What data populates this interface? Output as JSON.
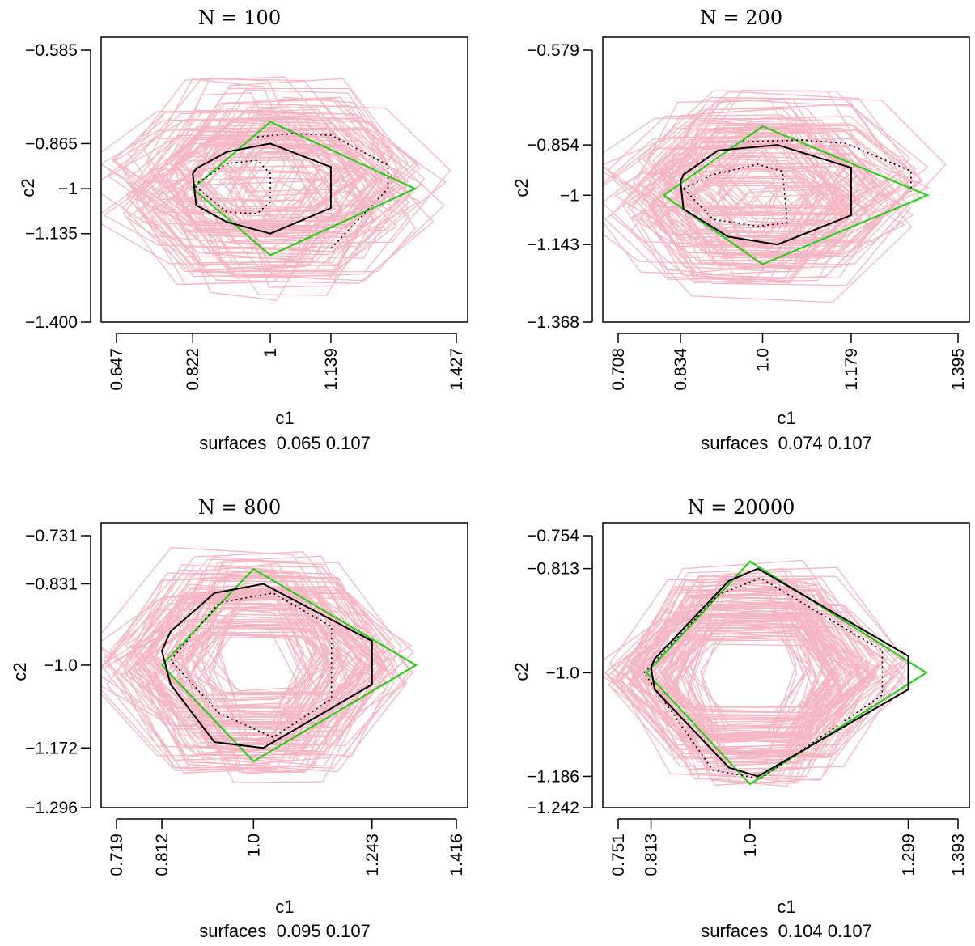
{
  "figure": {
    "xlabel": "c1",
    "ylabel": "c2",
    "colors": {
      "samples": "#f4b6c2",
      "truth": "#2ecc1f",
      "estimate": "#000000",
      "frame": "#000000"
    }
  },
  "chart_data": [
    {
      "type": "line",
      "title": "N = 100",
      "xlabel": "c1",
      "ylabel": "c2",
      "subtitle": "surfaces  0.065 0.107",
      "xlim": [
        0.647,
        1.427
      ],
      "ylim": [
        -1.4,
        -0.585
      ],
      "xticks": [
        0.647,
        0.822,
        1,
        1.139,
        1.427
      ],
      "xtick_labels": [
        "0.647",
        "0.822",
        "1",
        "1.139",
        "1.427"
      ],
      "yticks": [
        -0.585,
        -0.865,
        -1,
        -1.135,
        -1.4
      ],
      "ytick_labels": [
        "−0.585",
        "−0.865",
        "−1",
        "−1.135",
        "−1.400"
      ],
      "series": [
        {
          "style": "truth",
          "x": [
            0.822,
            1.0,
            1.332,
            1.0,
            0.822
          ],
          "y": [
            -1.0,
            -0.8,
            -1.0,
            -1.2,
            -1.0
          ]
        },
        {
          "style": "estimate",
          "x": [
            0.822,
            0.83,
            0.9,
            1.0,
            1.139,
            1.139,
            1.0,
            0.9,
            0.83,
            0.822
          ],
          "y": [
            -0.955,
            -0.94,
            -0.89,
            -0.865,
            -0.935,
            -1.058,
            -1.135,
            -1.1,
            -1.05,
            -0.955
          ]
        },
        {
          "style": "dotted",
          "x": [
            0.825,
            0.9,
            0.97,
            1.0,
            1.0,
            0.97,
            0.9,
            0.825
          ],
          "y": [
            -0.99,
            -0.925,
            -0.915,
            -0.955,
            -1.04,
            -1.075,
            -1.07,
            -0.99
          ]
        },
        {
          "style": "dotted",
          "x": [
            0.97,
            1.05,
            1.14,
            1.27,
            1.27,
            1.139
          ],
          "y": [
            -0.845,
            -0.835,
            -0.84,
            -0.93,
            -1.0,
            -1.18
          ]
        }
      ]
    },
    {
      "type": "line",
      "title": "N = 200",
      "xlabel": "c1",
      "ylabel": "c2",
      "subtitle": "surfaces  0.074 0.107",
      "xlim": [
        0.708,
        1.395
      ],
      "ylim": [
        -1.368,
        -0.579
      ],
      "xticks": [
        0.708,
        0.834,
        1.0,
        1.179,
        1.395
      ],
      "xtick_labels": [
        "0.708",
        "0.834",
        "1.0",
        "1.179",
        "1.395"
      ],
      "yticks": [
        -0.579,
        -0.854,
        -1,
        -1.143,
        -1.368
      ],
      "ytick_labels": [
        "−0.579",
        "−0.854",
        "−1",
        "−1.143",
        "−1.368"
      ],
      "series": [
        {
          "style": "truth",
          "x": [
            0.8,
            1.0,
            1.333,
            1.0,
            0.8
          ],
          "y": [
            -1.0,
            -0.8,
            -1.0,
            -1.2,
            -1.0
          ]
        },
        {
          "style": "estimate",
          "x": [
            0.834,
            0.84,
            0.91,
            1.03,
            1.179,
            1.179,
            1.03,
            0.93,
            0.84,
            0.834
          ],
          "y": [
            -0.96,
            -0.94,
            -0.87,
            -0.854,
            -0.92,
            -1.058,
            -1.143,
            -1.12,
            -1.04,
            -0.96
          ]
        },
        {
          "style": "dotted",
          "x": [
            0.84,
            0.9,
            0.99,
            1.04,
            1.05,
            0.99,
            0.9,
            0.84
          ],
          "y": [
            -0.98,
            -0.94,
            -0.91,
            -0.93,
            -1.08,
            -1.09,
            -1.07,
            -0.98
          ]
        },
        {
          "style": "dotted",
          "x": [
            0.96,
            1.08,
            1.17,
            1.3,
            1.3
          ],
          "y": [
            -0.845,
            -0.84,
            -0.85,
            -0.93,
            -0.99
          ]
        }
      ]
    },
    {
      "type": "line",
      "title": "N = 800",
      "xlabel": "c1",
      "ylabel": "c2",
      "subtitle": "surfaces  0.095 0.107",
      "xlim": [
        0.719,
        1.416
      ],
      "ylim": [
        -1.296,
        -0.731
      ],
      "xticks": [
        0.719,
        0.812,
        1.0,
        1.243,
        1.416
      ],
      "xtick_labels": [
        "0.719",
        "0.812",
        "1.0",
        "1.243",
        "1.416"
      ],
      "yticks": [
        -0.731,
        -0.831,
        -1.0,
        -1.172,
        -1.296
      ],
      "ytick_labels": [
        "−0.731",
        "−0.831",
        "−1.0",
        "−1.172",
        "−1.296"
      ],
      "series": [
        {
          "style": "truth",
          "x": [
            0.812,
            1.0,
            1.333,
            1.0,
            0.812
          ],
          "y": [
            -1.0,
            -0.8,
            -1.0,
            -1.2,
            -1.0
          ]
        },
        {
          "style": "estimate",
          "x": [
            0.812,
            0.83,
            0.92,
            1.02,
            1.243,
            1.243,
            1.02,
            0.92,
            0.83,
            0.812
          ],
          "y": [
            -0.97,
            -0.93,
            -0.85,
            -0.831,
            -0.95,
            -1.04,
            -1.172,
            -1.16,
            -1.04,
            -0.97
          ]
        },
        {
          "style": "dotted",
          "x": [
            0.83,
            0.93,
            1.04,
            1.16,
            1.16,
            1.04,
            0.93,
            0.83
          ],
          "y": [
            -0.99,
            -0.87,
            -0.85,
            -0.92,
            -1.07,
            -1.15,
            -1.1,
            -0.99
          ]
        }
      ]
    },
    {
      "type": "line",
      "title": "N = 20000",
      "xlabel": "c1",
      "ylabel": "c2",
      "subtitle": "surfaces  0.104 0.107",
      "xlim": [
        0.751,
        1.393
      ],
      "ylim": [
        -1.242,
        -0.754
      ],
      "xticks": [
        0.751,
        0.813,
        1.0,
        1.299,
        1.393
      ],
      "xtick_labels": [
        "0.751",
        "0.813",
        "1.0",
        "1.299",
        "1.393"
      ],
      "yticks": [
        -0.754,
        -0.813,
        -1.0,
        -1.186,
        -1.242
      ],
      "ytick_labels": [
        "−0.754",
        "−0.813",
        "−1.0",
        "−1.186",
        "−1.242"
      ],
      "series": [
        {
          "style": "truth",
          "x": [
            0.805,
            1.0,
            1.333,
            1.0,
            0.805
          ],
          "y": [
            -1.0,
            -0.8,
            -1.0,
            -1.2,
            -1.0
          ]
        },
        {
          "style": "estimate",
          "x": [
            0.813,
            0.82,
            0.96,
            1.015,
            1.299,
            1.299,
            1.015,
            0.96,
            0.82,
            0.813
          ],
          "y": [
            -0.99,
            -0.975,
            -0.835,
            -0.813,
            -0.97,
            -1.03,
            -1.186,
            -1.17,
            -1.03,
            -0.99
          ]
        },
        {
          "style": "dotted",
          "x": [
            0.8,
            0.94,
            1.02,
            1.25,
            1.25,
            1.02,
            0.93,
            0.8
          ],
          "y": [
            -1.0,
            -0.86,
            -0.83,
            -0.96,
            -1.04,
            -1.19,
            -1.175,
            -1.0
          ]
        }
      ]
    }
  ]
}
